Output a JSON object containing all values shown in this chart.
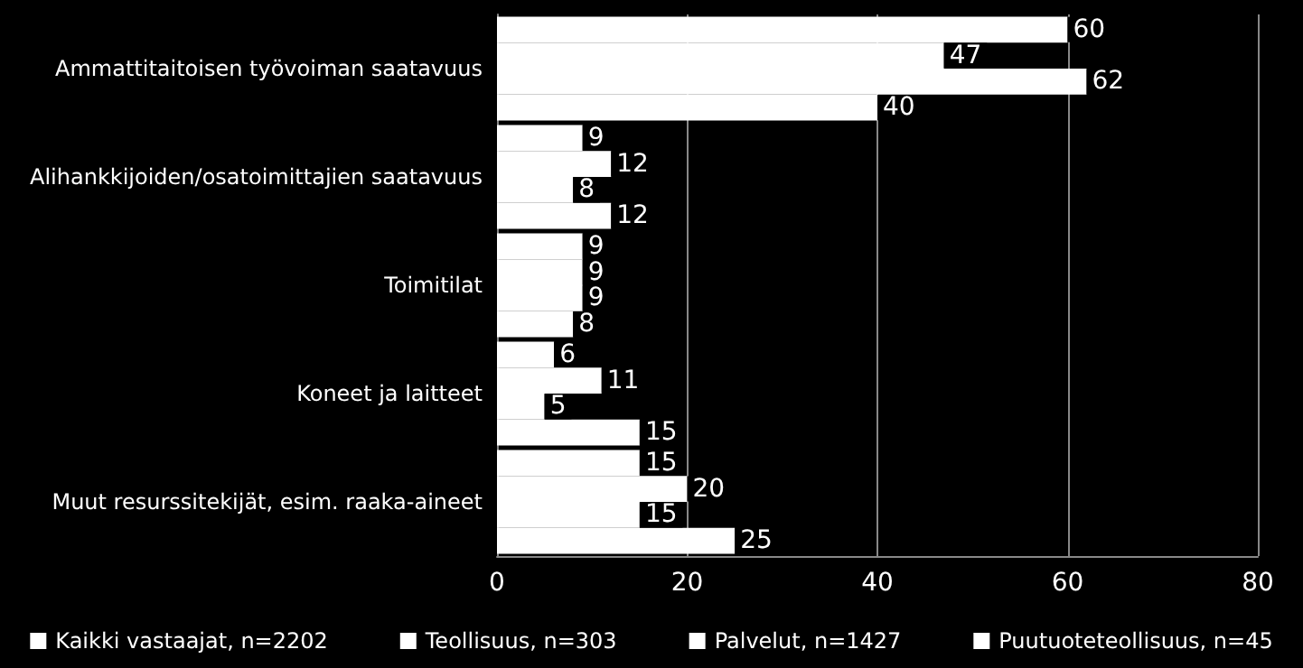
{
  "chart_data": {
    "type": "bar",
    "orientation": "horizontal",
    "categories": [
      "Ammattitaitoisen työvoiman saatavuus",
      "Alihankkijoiden/osatoimittajien saatavuus",
      "Toimitilat",
      "Koneet ja laitteet",
      "Muut resurssitekijät, esim. raaka-aineet"
    ],
    "series": [
      {
        "name": "Kaikki vastaajat, n=2202",
        "color": "#ffffff",
        "values": [
          60,
          9,
          9,
          6,
          15
        ]
      },
      {
        "name": "Teollisuus, n=303",
        "color": "#ffffff",
        "values": [
          47,
          12,
          9,
          11,
          20
        ]
      },
      {
        "name": "Palvelut, n=1427",
        "color": "#ffffff",
        "values": [
          62,
          8,
          9,
          5,
          15
        ]
      },
      {
        "name": "Puutuoteteollisuus, n=45",
        "color": "#ffffff",
        "values": [
          40,
          12,
          8,
          15,
          25
        ]
      }
    ],
    "xlim": [
      0,
      80
    ],
    "xticks": [
      0,
      20,
      40,
      60,
      80
    ],
    "grid": "x",
    "legend": "bottom",
    "data_labels": true
  }
}
